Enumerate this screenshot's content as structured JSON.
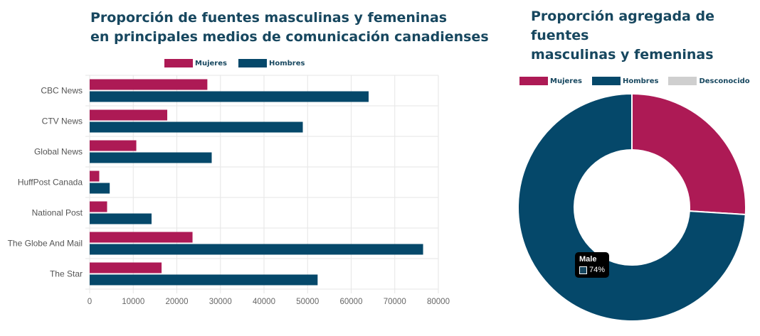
{
  "left_title_line1": "Proporción de fuentes masculinas y femeninas",
  "left_title_line2": "en principales medios de comunicación canadienses",
  "right_title_line1": "Proporción agregada de fuentes",
  "right_title_line2": "masculinas y femeninas",
  "colors": {
    "women": "#ad1a55",
    "men": "#05486a",
    "unknown": "#cfcfcf",
    "grid": "#e6e6e6",
    "axis_text": "#666666"
  },
  "chart_data": [
    {
      "type": "bar",
      "orientation": "horizontal",
      "title": "Proporción de fuentes masculinas y femeninas en principales medios de comunicación canadienses",
      "categories": [
        "CBC News",
        "CTV News",
        "Global News",
        "HuffPost Canada",
        "National Post",
        "The Globe And Mail",
        "The Star"
      ],
      "series": [
        {
          "name": "Mujeres",
          "values": [
            27000,
            17800,
            10700,
            2200,
            4000,
            23600,
            16500
          ]
        },
        {
          "name": "Hombres",
          "values": [
            64000,
            48900,
            28000,
            4600,
            14200,
            76500,
            52300
          ]
        }
      ],
      "xlim": [
        0,
        80000
      ],
      "xticks": [
        "0",
        "10000",
        "20000",
        "30000",
        "40000",
        "50000",
        "60000",
        "70000",
        "80000"
      ],
      "legend_position": "top",
      "grid": true
    },
    {
      "type": "pie",
      "style": "doughnut",
      "title": "Proporción agregada de fuentes masculinas y femeninas",
      "labels": [
        "Mujeres",
        "Hombres",
        "Desconocido"
      ],
      "values": [
        26,
        74,
        0
      ],
      "legend_position": "top-left",
      "tooltip": {
        "title": "Male",
        "value": "74%"
      }
    }
  ]
}
